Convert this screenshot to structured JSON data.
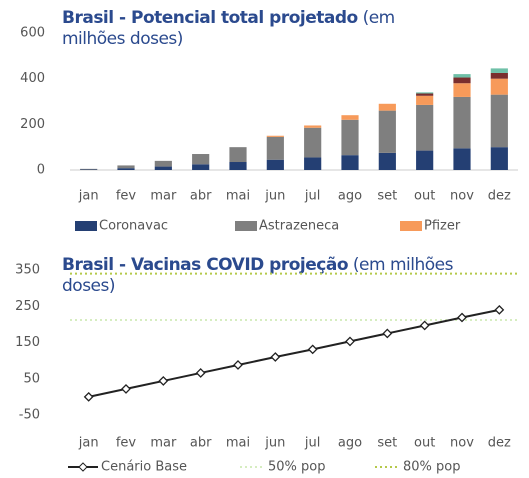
{
  "chart_data": [
    {
      "type": "bar",
      "title": "Brasil - Potencial total projetado",
      "title_note": "(em milhões doses)",
      "categories": [
        "jan",
        "fev",
        "mar",
        "abr",
        "mai",
        "jun",
        "jul",
        "ago",
        "set",
        "out",
        "nov",
        "dez"
      ],
      "series": [
        {
          "name": "Coronavac",
          "color": "#243f73",
          "values": [
            2,
            8,
            15,
            25,
            35,
            45,
            55,
            65,
            75,
            85,
            95,
            100
          ]
        },
        {
          "name": "Astrazeneca",
          "color": "#7f7f7f",
          "values": [
            3,
            12,
            25,
            45,
            65,
            100,
            130,
            155,
            185,
            200,
            225,
            230
          ]
        },
        {
          "name": "Pfizer",
          "color": "#f79a5a",
          "values": [
            0,
            0,
            0,
            0,
            0,
            5,
            10,
            20,
            30,
            40,
            60,
            70
          ]
        },
        {
          "color": "#7a2e2e",
          "values": [
            0,
            0,
            0,
            0,
            0,
            0,
            0,
            0,
            0,
            10,
            25,
            25
          ]
        },
        {
          "color": "#6fc0a8",
          "values": [
            0,
            0,
            0,
            0,
            0,
            0,
            0,
            0,
            0,
            5,
            15,
            20
          ]
        }
      ],
      "ylim": [
        0,
        600
      ],
      "yticks": [
        0,
        200,
        400,
        600
      ]
    },
    {
      "type": "line",
      "title": "Brasil - Vacinas COVID projeção",
      "title_note": "(em milhões doses)",
      "categories": [
        "jan",
        "fev",
        "mar",
        "abr",
        "mai",
        "jun",
        "jul",
        "ago",
        "set",
        "out",
        "nov",
        "dez"
      ],
      "series": [
        {
          "name": "Cenário Base",
          "color": "#222222",
          "values": [
            0,
            22,
            44,
            66,
            88,
            110,
            131,
            153,
            175,
            197,
            219,
            240
          ]
        }
      ],
      "reference_lines": [
        {
          "name": "50% pop",
          "color": "#d6edc0",
          "value": 212
        },
        {
          "name": "80% pop",
          "color": "#b5c94a",
          "value": 340
        }
      ],
      "ylim": [
        -50,
        350
      ],
      "yticks": [
        -50,
        50,
        150,
        250,
        350
      ]
    }
  ]
}
